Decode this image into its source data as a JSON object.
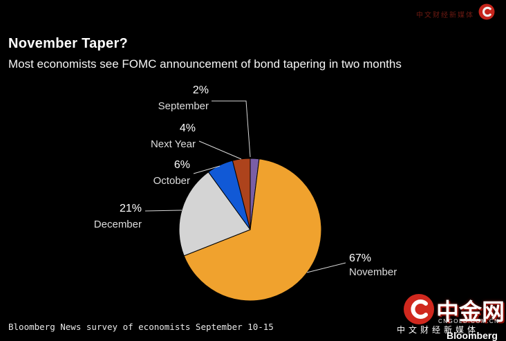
{
  "header": {
    "title": "November Taper?",
    "subtitle": "Most economists see FOMC announcement of bond tapering in two months"
  },
  "footer": {
    "source": "Bloomberg News survey of economists September 10-15"
  },
  "chart_data": {
    "type": "pie",
    "title": "November Taper?",
    "subtitle": "Most economists see FOMC announcement of bond tapering in two months",
    "source": "Bloomberg News survey of economists September 10-15",
    "direction": "clockwise",
    "start_angle_deg": 0,
    "legend_position": "callout-labels",
    "slices": [
      {
        "label": "September",
        "value": 2,
        "pct": "2%",
        "color": "#7a5ea6"
      },
      {
        "label": "November",
        "value": 67,
        "pct": "67%",
        "color": "#f0a22e"
      },
      {
        "label": "December",
        "value": 21,
        "pct": "21%",
        "color": "#d4d4d4"
      },
      {
        "label": "October",
        "value": 6,
        "pct": "6%",
        "color": "#1159d6"
      },
      {
        "label": "Next Year",
        "value": 4,
        "pct": "4%",
        "color": "#ad431c"
      }
    ]
  },
  "watermark_top": {
    "icon": "cngold-logo-icon",
    "text": "中文财经新媒体"
  },
  "watermark_bottom": {
    "brand": "中金网",
    "domain": "CNGOLD.COM.CN",
    "tagline": "中文财经新媒体",
    "bloomberg": "Bloomberg"
  },
  "colors": {
    "background": "#000000",
    "text": "#ffffff",
    "leader_line": "#d9d9d9",
    "watermark_red": "#d0281e"
  }
}
